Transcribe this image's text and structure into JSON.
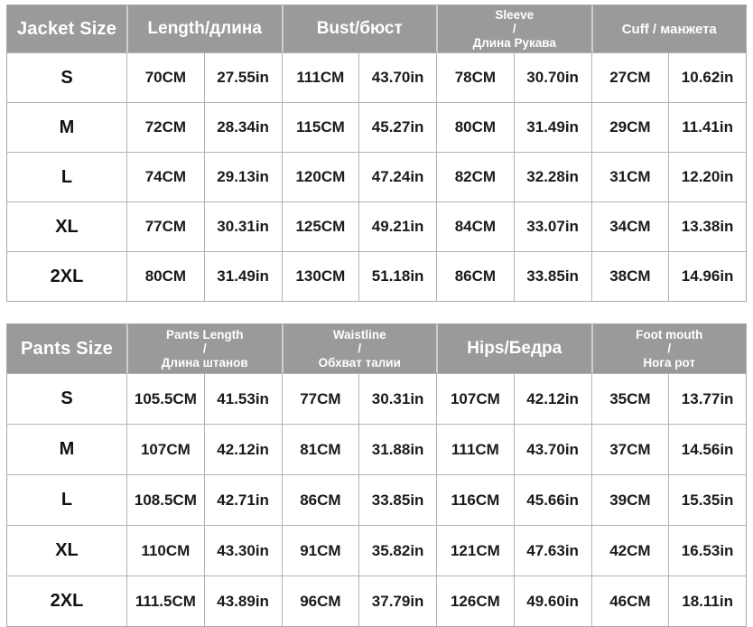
{
  "colors": {
    "header_background": "#9a9a9a",
    "header_text": "#ffffff",
    "body_text": "#1a1a1a",
    "grid_line": "#b3b3b3",
    "body_background": "#ffffff"
  },
  "chart_data": [
    {
      "type": "table",
      "size_header": "Jacket Size",
      "group_headers": [
        {
          "line1": "Length/длина"
        },
        {
          "line1": "Bust/бюст"
        },
        {
          "line1": "Sleeve",
          "line2": "/",
          "line3": "Длина Рукава"
        },
        {
          "line1": "Cuff / манжета"
        }
      ],
      "rows": [
        {
          "size": "S",
          "values": [
            "70CM",
            "27.55in",
            "111CM",
            "43.70in",
            "78CM",
            "30.70in",
            "27CM",
            "10.62in"
          ]
        },
        {
          "size": "M",
          "values": [
            "72CM",
            "28.34in",
            "115CM",
            "45.27in",
            "80CM",
            "31.49in",
            "29CM",
            "11.41in"
          ]
        },
        {
          "size": "L",
          "values": [
            "74CM",
            "29.13in",
            "120CM",
            "47.24in",
            "82CM",
            "32.28in",
            "31CM",
            "12.20in"
          ]
        },
        {
          "size": "XL",
          "values": [
            "77CM",
            "30.31in",
            "125CM",
            "49.21in",
            "84CM",
            "33.07in",
            "34CM",
            "13.38in"
          ]
        },
        {
          "size": "2XL",
          "values": [
            "80CM",
            "31.49in",
            "130CM",
            "51.18in",
            "86CM",
            "33.85in",
            "38CM",
            "14.96in"
          ]
        }
      ]
    },
    {
      "type": "table",
      "size_header": "Pants Size",
      "group_headers": [
        {
          "line1": "Pants Length",
          "line2": "/",
          "line3": "Длина штанов"
        },
        {
          "line1": "Waistline",
          "line2": "/",
          "line3": "Обхват талии"
        },
        {
          "line1": "Hips/Бедра"
        },
        {
          "line1": "Foot mouth",
          "line2": "/",
          "line3": "Нога рот"
        }
      ],
      "rows": [
        {
          "size": "S",
          "values": [
            "105.5CM",
            "41.53in",
            "77CM",
            "30.31in",
            "107CM",
            "42.12in",
            "35CM",
            "13.77in"
          ]
        },
        {
          "size": "M",
          "values": [
            "107CM",
            "42.12in",
            "81CM",
            "31.88in",
            "111CM",
            "43.70in",
            "37CM",
            "14.56in"
          ]
        },
        {
          "size": "L",
          "values": [
            "108.5CM",
            "42.71in",
            "86CM",
            "33.85in",
            "116CM",
            "45.66in",
            "39CM",
            "15.35in"
          ]
        },
        {
          "size": "XL",
          "values": [
            "110CM",
            "43.30in",
            "91CM",
            "35.82in",
            "121CM",
            "47.63in",
            "42CM",
            "16.53in"
          ]
        },
        {
          "size": "2XL",
          "values": [
            "111.5CM",
            "43.89in",
            "96CM",
            "37.79in",
            "126CM",
            "49.60in",
            "46CM",
            "18.11in"
          ]
        }
      ]
    }
  ]
}
